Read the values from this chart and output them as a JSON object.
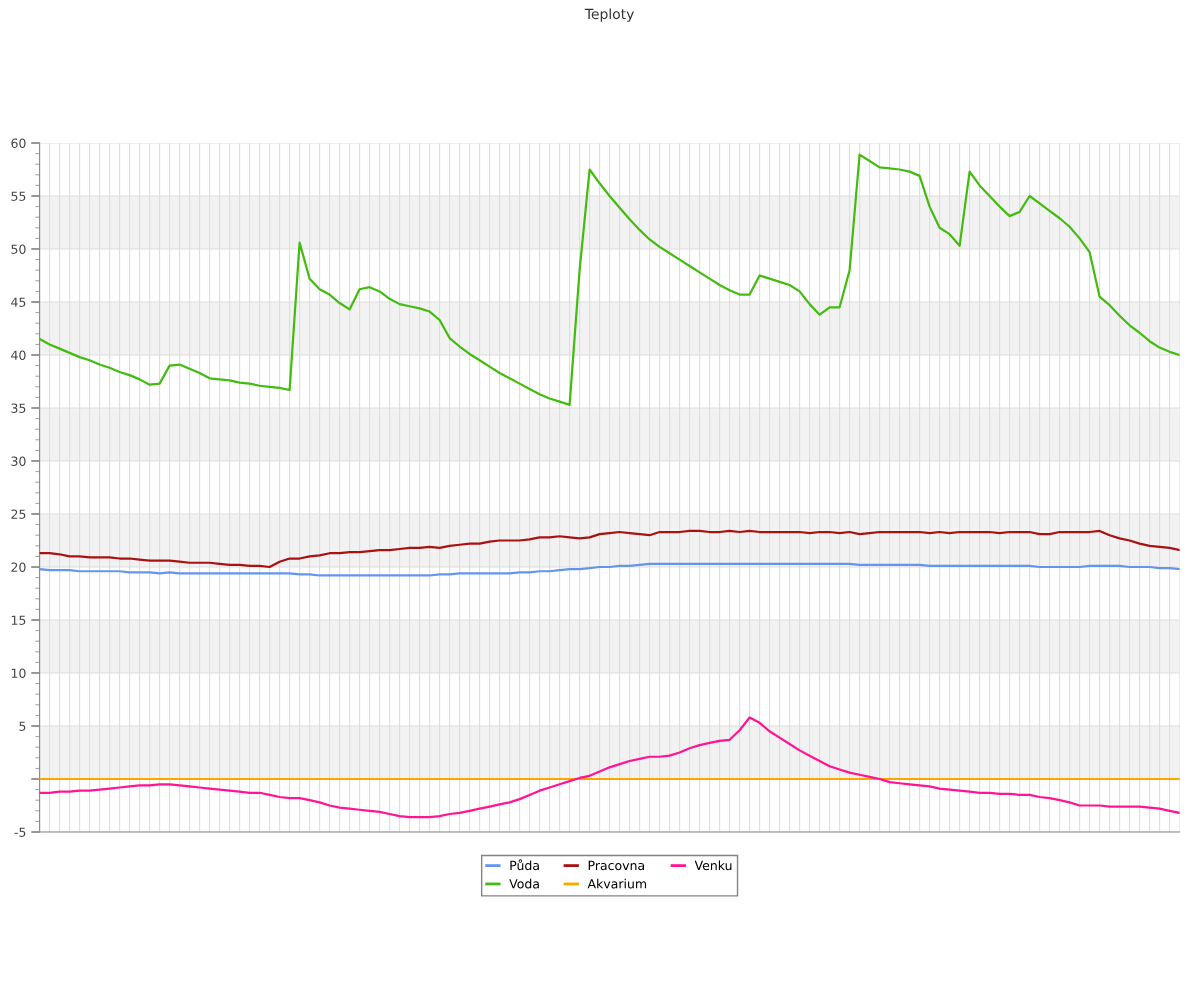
{
  "chart_data": {
    "type": "line",
    "title": "Teploty",
    "categories": [
      null,
      null,
      null,
      null,
      null,
      null,
      null,
      null,
      null,
      null,
      null,
      null,
      null,
      null,
      null,
      null,
      null,
      null,
      null,
      null,
      null,
      null,
      null,
      null,
      null,
      null,
      null,
      null,
      null,
      null,
      null,
      null,
      null,
      null,
      null,
      null,
      null,
      null,
      null,
      null,
      null,
      null,
      null,
      null,
      null,
      null,
      null,
      null,
      null,
      null,
      null,
      null,
      null,
      null,
      null,
      null,
      null,
      null,
      null,
      null,
      null,
      null,
      null,
      null,
      null,
      null,
      null,
      null,
      null,
      null,
      null,
      null,
      null,
      null,
      null,
      null,
      null,
      null,
      null,
      null,
      null,
      null,
      null,
      null,
      null,
      null,
      null,
      null,
      null,
      null,
      null,
      null,
      null,
      null,
      null,
      null,
      null,
      null,
      null,
      null,
      null,
      null,
      null,
      null,
      null,
      null,
      null,
      null,
      null,
      null,
      null,
      null,
      null,
      null,
      null
    ],
    "series": [
      {
        "name": "Půda",
        "color": "#6495ed",
        "values": [
          19.8,
          19.7,
          19.7,
          19.7,
          19.6,
          19.6,
          19.6,
          19.6,
          19.6,
          19.5,
          19.5,
          19.5,
          19.4,
          19.5,
          19.4,
          19.4,
          19.4,
          19.4,
          19.4,
          19.4,
          19.4,
          19.4,
          19.4,
          19.4,
          19.4,
          19.4,
          19.3,
          19.3,
          19.2,
          19.2,
          19.2,
          19.2,
          19.2,
          19.2,
          19.2,
          19.2,
          19.2,
          19.2,
          19.2,
          19.2,
          19.3,
          19.3,
          19.4,
          19.4,
          19.4,
          19.4,
          19.4,
          19.4,
          19.5,
          19.5,
          19.6,
          19.6,
          19.7,
          19.8,
          19.8,
          19.9,
          20.0,
          20.0,
          20.1,
          20.1,
          20.2,
          20.3,
          20.3,
          20.3,
          20.3,
          20.3,
          20.3,
          20.3,
          20.3,
          20.3,
          20.3,
          20.3,
          20.3,
          20.3,
          20.3,
          20.3,
          20.3,
          20.3,
          20.3,
          20.3,
          20.3,
          20.3,
          20.2,
          20.2,
          20.2,
          20.2,
          20.2,
          20.2,
          20.2,
          20.1,
          20.1,
          20.1,
          20.1,
          20.1,
          20.1,
          20.1,
          20.1,
          20.1,
          20.1,
          20.1,
          20.0,
          20.0,
          20.0,
          20.0,
          20.0,
          20.1,
          20.1,
          20.1,
          20.1,
          20.0,
          20.0,
          20.0,
          19.9,
          19.9,
          19.8
        ]
      },
      {
        "name": "Voda",
        "color": "#44bb11",
        "values": [
          41.5,
          41.0,
          40.6,
          40.2,
          39.8,
          39.5,
          39.1,
          38.8,
          38.4,
          38.1,
          37.7,
          37.2,
          37.3,
          39.0,
          39.1,
          38.7,
          38.3,
          37.8,
          37.7,
          37.6,
          37.4,
          37.3,
          37.1,
          37.0,
          36.9,
          36.7,
          50.6,
          47.2,
          46.2,
          45.7,
          44.9,
          44.3,
          46.2,
          46.4,
          46.0,
          45.3,
          44.8,
          44.6,
          44.4,
          44.1,
          43.3,
          41.6,
          40.8,
          40.1,
          39.5,
          38.9,
          38.3,
          37.8,
          37.3,
          36.8,
          36.3,
          35.9,
          35.6,
          35.3,
          48.0,
          57.5,
          56.2,
          55.0,
          53.9,
          52.8,
          51.8,
          50.9,
          50.2,
          49.6,
          49.0,
          48.4,
          47.8,
          47.2,
          46.6,
          46.1,
          45.7,
          45.7,
          47.5,
          47.2,
          46.9,
          46.6,
          46.0,
          44.8,
          43.8,
          44.5,
          44.5,
          48.0,
          58.9,
          58.3,
          57.7,
          57.6,
          57.5,
          57.3,
          56.9,
          54.0,
          52.0,
          51.4,
          50.3,
          57.3,
          56.0,
          55.0,
          54.0,
          53.1,
          53.5,
          55.0,
          54.3,
          53.6,
          52.9,
          52.1,
          51.0,
          49.7,
          45.5,
          44.7,
          43.7,
          42.8,
          42.1,
          41.3,
          40.7,
          40.3,
          40.0
        ]
      },
      {
        "name": "Pracovna",
        "color": "#aa1111",
        "values": [
          21.3,
          21.3,
          21.2,
          21.0,
          21.0,
          20.9,
          20.9,
          20.9,
          20.8,
          20.8,
          20.7,
          20.6,
          20.6,
          20.6,
          20.5,
          20.4,
          20.4,
          20.4,
          20.3,
          20.2,
          20.2,
          20.1,
          20.1,
          20.0,
          20.5,
          20.8,
          20.8,
          21.0,
          21.1,
          21.3,
          21.3,
          21.4,
          21.4,
          21.5,
          21.6,
          21.6,
          21.7,
          21.8,
          21.8,
          21.9,
          21.8,
          22.0,
          22.1,
          22.2,
          22.2,
          22.4,
          22.5,
          22.5,
          22.5,
          22.6,
          22.8,
          22.8,
          22.9,
          22.8,
          22.7,
          22.8,
          23.1,
          23.2,
          23.3,
          23.2,
          23.1,
          23.0,
          23.3,
          23.3,
          23.3,
          23.4,
          23.4,
          23.3,
          23.3,
          23.4,
          23.3,
          23.4,
          23.3,
          23.3,
          23.3,
          23.3,
          23.3,
          23.2,
          23.3,
          23.3,
          23.2,
          23.3,
          23.1,
          23.2,
          23.3,
          23.3,
          23.3,
          23.3,
          23.3,
          23.2,
          23.3,
          23.2,
          23.3,
          23.3,
          23.3,
          23.3,
          23.2,
          23.3,
          23.3,
          23.3,
          23.1,
          23.1,
          23.3,
          23.3,
          23.3,
          23.3,
          23.4,
          23.0,
          22.7,
          22.5,
          22.2,
          22.0,
          21.9,
          21.8,
          21.6
        ]
      },
      {
        "name": "Akvarium",
        "color": "#ffa500",
        "values": [
          0,
          0,
          0,
          0,
          0,
          0,
          0,
          0,
          0,
          0,
          0,
          0,
          0,
          0,
          0,
          0,
          0,
          0,
          0,
          0,
          0,
          0,
          0,
          0,
          0,
          0,
          0,
          0,
          0,
          0,
          0,
          0,
          0,
          0,
          0,
          0,
          0,
          0,
          0,
          0,
          0,
          0,
          0,
          0,
          0,
          0,
          0,
          0,
          0,
          0,
          0,
          0,
          0,
          0,
          0,
          0,
          0,
          0,
          0,
          0,
          0,
          0,
          0,
          0,
          0,
          0,
          0,
          0,
          0,
          0,
          0,
          0,
          0,
          0,
          0,
          0,
          0,
          0,
          0,
          0,
          0,
          0,
          0,
          0,
          0,
          0,
          0,
          0,
          0,
          0,
          0,
          0,
          0,
          0,
          0,
          0,
          0,
          0,
          0,
          0,
          0,
          0,
          0,
          0,
          0,
          0,
          0,
          0,
          0,
          0,
          0,
          0,
          0,
          0,
          0
        ]
      },
      {
        "name": "Venku",
        "color": "#ff1493",
        "values": [
          -1.3,
          -1.3,
          -1.2,
          -1.2,
          -1.1,
          -1.1,
          -1.0,
          -0.9,
          -0.8,
          -0.7,
          -0.6,
          -0.6,
          -0.5,
          -0.5,
          -0.6,
          -0.7,
          -0.8,
          -0.9,
          -1.0,
          -1.1,
          -1.2,
          -1.3,
          -1.3,
          -1.5,
          -1.7,
          -1.8,
          -1.8,
          -2.0,
          -2.2,
          -2.5,
          -2.7,
          -2.8,
          -2.9,
          -3.0,
          -3.1,
          -3.3,
          -3.5,
          -3.6,
          -3.6,
          -3.6,
          -3.5,
          -3.3,
          -3.2,
          -3.0,
          -2.8,
          -2.6,
          -2.4,
          -2.2,
          -1.9,
          -1.5,
          -1.1,
          -0.8,
          -0.5,
          -0.2,
          0.1,
          0.3,
          0.7,
          1.1,
          1.4,
          1.7,
          1.9,
          2.1,
          2.1,
          2.2,
          2.5,
          2.9,
          3.2,
          3.4,
          3.6,
          3.7,
          4.6,
          5.8,
          5.3,
          4.5,
          3.9,
          3.3,
          2.7,
          2.2,
          1.7,
          1.2,
          0.9,
          0.6,
          0.4,
          0.2,
          0.0,
          -0.3,
          -0.4,
          -0.5,
          -0.6,
          -0.7,
          -0.9,
          -1.0,
          -1.1,
          -1.2,
          -1.3,
          -1.3,
          -1.4,
          -1.4,
          -1.5,
          -1.5,
          -1.7,
          -1.8,
          -2.0,
          -2.2,
          -2.5,
          -2.5,
          -2.5,
          -2.6,
          -2.6,
          -2.6,
          -2.6,
          -2.7,
          -2.8,
          -3.0,
          -3.2
        ]
      }
    ],
    "ylim": [
      -5,
      60
    ],
    "yticks": [
      -5,
      {
        "value": 0,
        "label": null
      },
      5,
      10,
      15,
      20,
      25,
      30,
      35,
      40,
      45,
      50,
      55,
      60
    ],
    "bands": [
      {
        "axis": "y",
        "from": 0,
        "to": 5,
        "color": "#f2f2f2"
      },
      {
        "axis": "y",
        "from": 10,
        "to": 15,
        "color": "#f2f2f2"
      },
      {
        "axis": "y",
        "from": 20,
        "to": 25,
        "color": "#f2f2f2"
      },
      {
        "axis": "y",
        "from": 30,
        "to": 35,
        "color": "#f2f2f2"
      },
      {
        "axis": "y",
        "from": 40,
        "to": 45,
        "color": "#f2f2f2"
      },
      {
        "axis": "y",
        "from": 50,
        "to": 55,
        "color": "#f2f2f2"
      }
    ],
    "grid": true,
    "legend": "bottom",
    "marker": "none",
    "line_style": "solid"
  }
}
